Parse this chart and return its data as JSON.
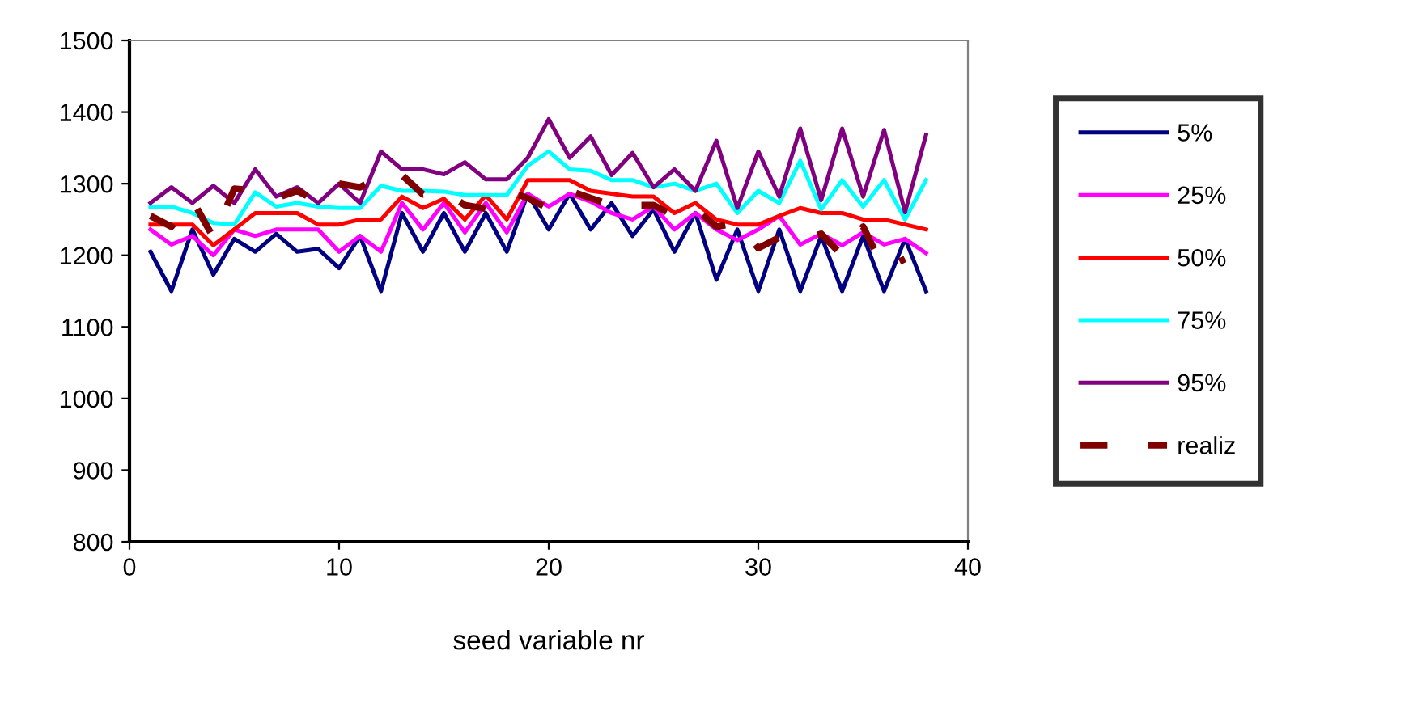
{
  "chart_data": {
    "type": "line",
    "xlabel": "seed variable nr",
    "x": [
      1,
      2,
      3,
      4,
      5,
      6,
      7,
      8,
      9,
      10,
      11,
      12,
      13,
      14,
      15,
      16,
      17,
      18,
      19,
      20,
      21,
      22,
      23,
      24,
      25,
      26,
      27,
      28,
      29,
      30,
      31,
      32,
      33,
      34,
      35,
      36,
      37,
      38
    ],
    "xlim": [
      0,
      40
    ],
    "xticks": [
      0,
      10,
      20,
      30,
      40
    ],
    "ylim": [
      800,
      1500
    ],
    "yticks": [
      800,
      900,
      1000,
      1100,
      1200,
      1300,
      1400,
      1500
    ],
    "grid": false,
    "legend": "right",
    "marker": "none",
    "series": [
      {
        "name": "5%",
        "color": "#000080",
        "values": [
          1205,
          1150,
          1236,
          1173,
          1223,
          1205,
          1230,
          1205,
          1209,
          1182,
          1227,
          1150,
          1259,
          1205,
          1259,
          1205,
          1259,
          1205,
          1286,
          1236,
          1286,
          1236,
          1273,
          1227,
          1264,
          1205,
          1259,
          1166,
          1236,
          1150,
          1236,
          1150,
          1227,
          1150,
          1227,
          1150,
          1223,
          1150
        ]
      },
      {
        "name": "25%",
        "color": "#ff00ff",
        "values": [
          1236,
          1215,
          1227,
          1200,
          1236,
          1227,
          1236,
          1236,
          1236,
          1205,
          1227,
          1205,
          1273,
          1236,
          1273,
          1232,
          1273,
          1232,
          1286,
          1268,
          1286,
          1275,
          1259,
          1250,
          1268,
          1236,
          1259,
          1236,
          1221,
          1236,
          1255,
          1215,
          1230,
          1214,
          1232,
          1215,
          1223,
          1203
        ]
      },
      {
        "name": "50%",
        "color": "#ff0000",
        "values": [
          1243,
          1243,
          1243,
          1214,
          1236,
          1259,
          1259,
          1259,
          1243,
          1243,
          1250,
          1250,
          1282,
          1266,
          1279,
          1250,
          1284,
          1250,
          1305,
          1305,
          1305,
          1290,
          1286,
          1282,
          1282,
          1259,
          1273,
          1250,
          1243,
          1243,
          1255,
          1266,
          1259,
          1259,
          1250,
          1250,
          1243,
          1236
        ]
      },
      {
        "name": "75%",
        "color": "#00ffff",
        "values": [
          1268,
          1268,
          1259,
          1245,
          1243,
          1288,
          1268,
          1273,
          1268,
          1266,
          1266,
          1297,
          1290,
          1290,
          1289,
          1284,
          1284,
          1284,
          1325,
          1345,
          1320,
          1318,
          1305,
          1305,
          1295,
          1300,
          1290,
          1300,
          1259,
          1290,
          1273,
          1332,
          1264,
          1305,
          1268,
          1305,
          1250,
          1305
        ]
      },
      {
        "name": "95%",
        "color": "#800080",
        "values": [
          1273,
          1295,
          1273,
          1297,
          1273,
          1320,
          1282,
          1295,
          1273,
          1300,
          1273,
          1345,
          1320,
          1320,
          1313,
          1330,
          1306,
          1306,
          1336,
          1390,
          1336,
          1366,
          1312,
          1343,
          1295,
          1320,
          1290,
          1360,
          1266,
          1345,
          1282,
          1377,
          1277,
          1377,
          1282,
          1375,
          1260,
          1368
        ]
      },
      {
        "name": "realiz",
        "color": "#800000",
        "line_style": "dashed",
        "values": [
          1255,
          1240,
          1277,
          1225,
          1293,
          1290,
          1280,
          1290,
          1275,
          1300,
          1295,
          1310,
          1312,
          1285,
          1290,
          1270,
          1265,
          1290,
          1280,
          1265,
          1290,
          1280,
          1270,
          1270,
          1270,
          1255,
          1265,
          1240,
          1245,
          1210,
          1225,
          1220,
          1230,
          1200,
          1240,
          1180,
          1195,
          null
        ]
      }
    ]
  }
}
